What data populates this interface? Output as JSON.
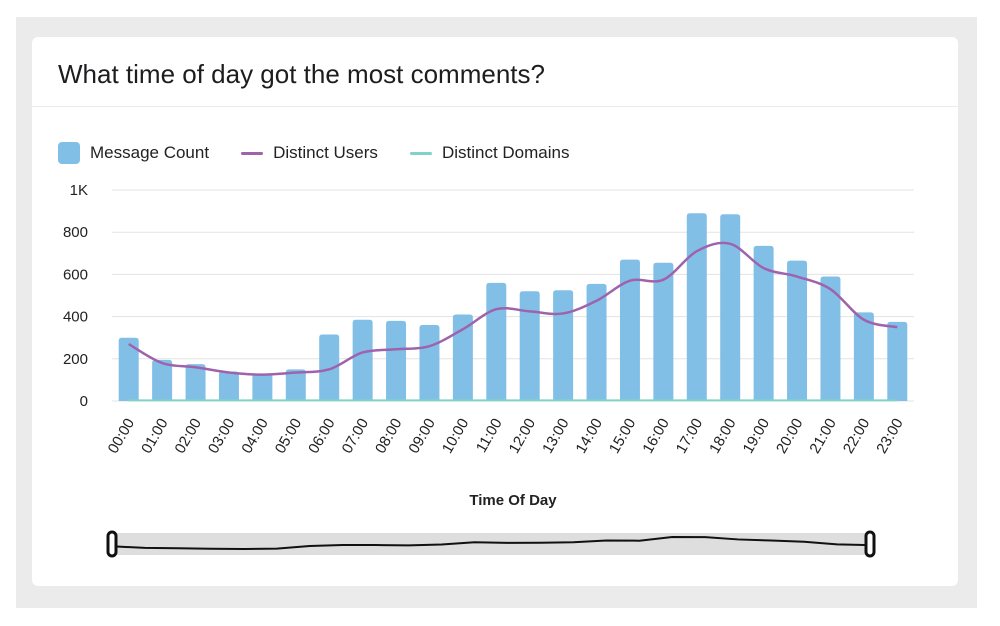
{
  "card": {
    "title": "What time of day got the most comments?"
  },
  "legend": [
    {
      "label": "Message Count",
      "kind": "bar",
      "color": "#82bfe7"
    },
    {
      "label": "Distinct Users",
      "kind": "line",
      "color": "#9e63ac"
    },
    {
      "label": "Distinct Domains",
      "kind": "line",
      "color": "#7fd3c9"
    }
  ],
  "chart_data": {
    "type": "bar",
    "title": "What time of day got the most comments?",
    "xlabel": "Time Of Day",
    "ylabel": "",
    "ylim": [
      0,
      1000
    ],
    "yticks": [
      0,
      200,
      400,
      600,
      800,
      1000
    ],
    "ytick_labels": [
      "0",
      "200",
      "400",
      "600",
      "800",
      "1K"
    ],
    "grid": true,
    "legend_position": "top-left",
    "categories": [
      "00:00",
      "01:00",
      "02:00",
      "03:00",
      "04:00",
      "05:00",
      "06:00",
      "07:00",
      "08:00",
      "09:00",
      "10:00",
      "11:00",
      "12:00",
      "13:00",
      "14:00",
      "15:00",
      "16:00",
      "17:00",
      "18:00",
      "19:00",
      "20:00",
      "21:00",
      "22:00",
      "23:00"
    ],
    "series": [
      {
        "name": "Message Count",
        "type": "bar",
        "color": "#82bfe7",
        "values": [
          300,
          195,
          175,
          140,
          130,
          150,
          315,
          385,
          380,
          360,
          410,
          560,
          520,
          525,
          555,
          670,
          655,
          890,
          885,
          735,
          665,
          590,
          420,
          375
        ]
      },
      {
        "name": "Distinct Users",
        "type": "line",
        "color": "#9e63ac",
        "values": [
          270,
          180,
          160,
          135,
          125,
          135,
          150,
          230,
          245,
          260,
          340,
          435,
          425,
          415,
          475,
          570,
          575,
          710,
          745,
          630,
          590,
          530,
          385,
          350
        ]
      },
      {
        "name": "Distinct Domains",
        "type": "line",
        "color": "#7fd3c9",
        "values": [
          3,
          3,
          3,
          3,
          3,
          3,
          3,
          3,
          3,
          3,
          3,
          3,
          3,
          3,
          3,
          3,
          3,
          3,
          3,
          3,
          3,
          3,
          3,
          3
        ]
      }
    ],
    "brush": {
      "start_index": 0,
      "end_index": 23
    }
  }
}
